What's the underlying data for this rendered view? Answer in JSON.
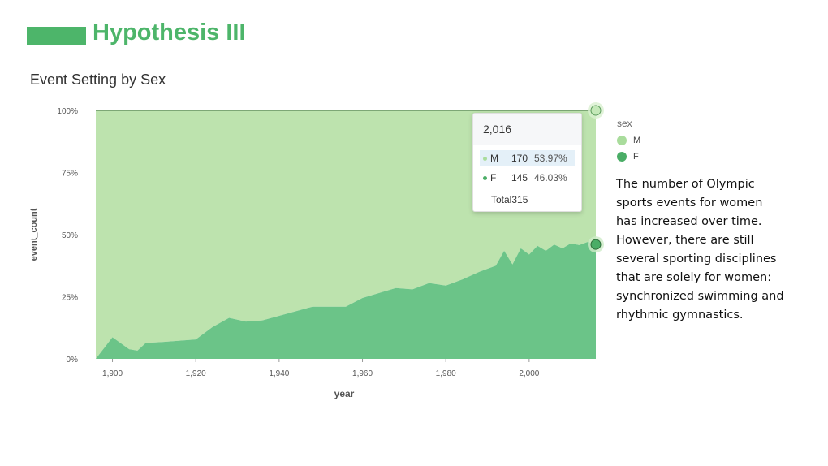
{
  "slide": {
    "title": "Hypothesis III",
    "accent_color": "#4db56a"
  },
  "chart_title": "Event Setting by Sex",
  "note": "The number of Olympic sports events for women has increased over time. However, there are still several sporting disciplines that are solely for women: synchronized swimming and rhythmic gymnastics.",
  "legend": {
    "title": "sex",
    "items": [
      {
        "label": "M",
        "color": "#a9dc9c"
      },
      {
        "label": "F",
        "color": "#4aad66"
      }
    ]
  },
  "tooltip": {
    "year": "2,016",
    "rows": [
      {
        "sex": "M",
        "count": "170",
        "pct": "53.97%",
        "color": "#a9dc9c"
      },
      {
        "sex": "F",
        "count": "145",
        "pct": "46.03%",
        "color": "#4aad66"
      }
    ],
    "total": "Total315"
  },
  "chart_data": {
    "type": "area",
    "stacking": "percent",
    "xlabel": "year",
    "ylabel": "event_count",
    "xlim": [
      1896,
      2016
    ],
    "ylim": [
      0,
      100
    ],
    "x_ticks": [
      1900,
      1920,
      1940,
      1960,
      1980,
      2000
    ],
    "x_tick_labels": [
      "1,900",
      "1,920",
      "1,940",
      "1,960",
      "1,980",
      "2,000"
    ],
    "y_ticks": [
      0,
      25,
      50,
      75,
      100
    ],
    "y_tick_labels": [
      "0%",
      "25%",
      "50%",
      "75%",
      "100%"
    ],
    "x": [
      1896,
      1900,
      1904,
      1906,
      1908,
      1912,
      1920,
      1924,
      1928,
      1932,
      1936,
      1948,
      1952,
      1956,
      1960,
      1964,
      1968,
      1972,
      1976,
      1980,
      1984,
      1988,
      1992,
      1994,
      1996,
      1998,
      2000,
      2002,
      2004,
      2006,
      2008,
      2010,
      2012,
      2014,
      2016
    ],
    "series": [
      {
        "name": "F",
        "color": "#6bc488",
        "values": [
          0,
          8.7,
          3.9,
          3.3,
          6.4,
          6.8,
          7.8,
          12.8,
          16.5,
          15.0,
          15.5,
          21.0,
          21.0,
          21.0,
          24.5,
          26.5,
          28.5,
          28.0,
          30.5,
          29.5,
          32.0,
          35.0,
          37.5,
          43.5,
          38.0,
          44.5,
          42.0,
          45.5,
          43.5,
          46.0,
          44.5,
          46.5,
          45.8,
          47.0,
          46.03
        ]
      },
      {
        "name": "M",
        "color": "#bde3ae",
        "values": [
          100,
          91.3,
          96.1,
          96.7,
          93.6,
          93.2,
          92.2,
          87.2,
          83.5,
          85.0,
          84.5,
          79.0,
          79.0,
          79.0,
          75.5,
          73.5,
          71.5,
          72.0,
          69.5,
          70.5,
          68.0,
          65.0,
          62.5,
          56.5,
          62.0,
          55.5,
          58.0,
          54.5,
          56.5,
          54.0,
          55.5,
          53.5,
          54.2,
          53.0,
          53.97
        ]
      }
    ],
    "highlight_x": 2016,
    "grid": false,
    "legend_position": "right"
  }
}
